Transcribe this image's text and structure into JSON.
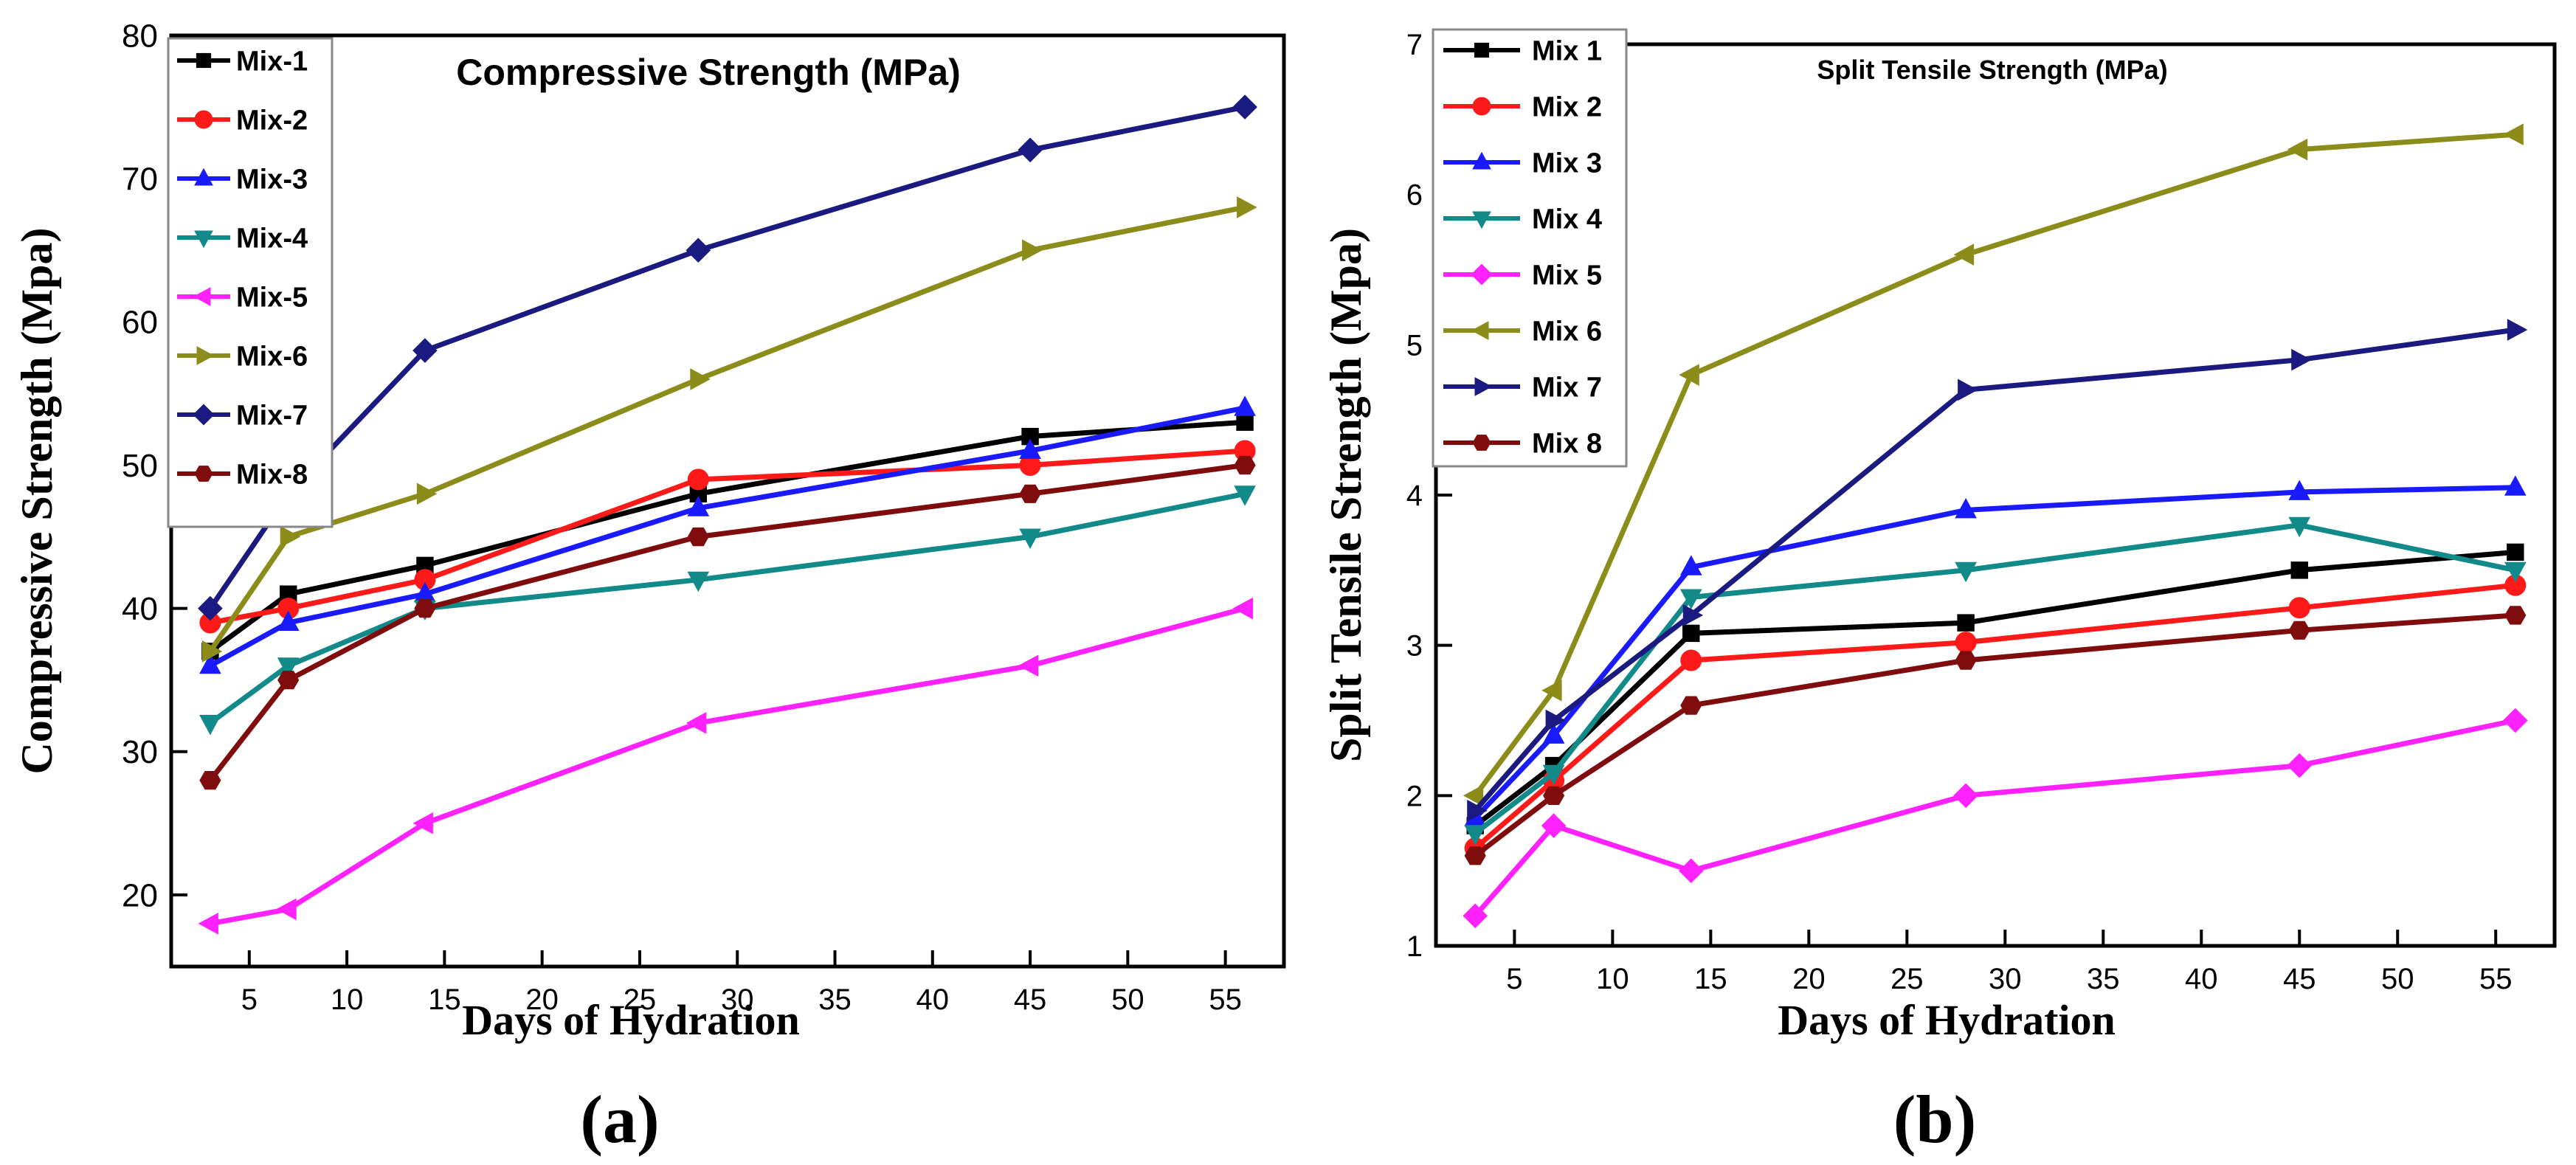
{
  "chart_data": [
    {
      "type": "line",
      "panel_label": "(a)",
      "title": "Compressive Strength (MPa)",
      "xlabel": "Days of Hydration",
      "ylabel": "Compressive Strength (Mpa)",
      "xlim": [
        1,
        58
      ],
      "ylim": [
        15,
        80
      ],
      "xticks": [
        5,
        10,
        15,
        20,
        25,
        30,
        35,
        40,
        45,
        50,
        55
      ],
      "yticks": [
        20,
        30,
        40,
        50,
        60,
        70,
        80
      ],
      "x": [
        3,
        7,
        14,
        28,
        45,
        56
      ],
      "legend_position": "top-left",
      "series": [
        {
          "name": "Mix-1",
          "color": "#000000",
          "marker": "square",
          "values": [
            37,
            41,
            43,
            48,
            52,
            53
          ]
        },
        {
          "name": "Mix-2",
          "color": "#ff1a1a",
          "marker": "circle",
          "values": [
            39,
            40,
            42,
            49,
            50,
            51
          ]
        },
        {
          "name": "Mix-3",
          "color": "#1a1aff",
          "marker": "triangle-up",
          "values": [
            36,
            39,
            41,
            47,
            51,
            54
          ]
        },
        {
          "name": "Mix-4",
          "color": "#128a8a",
          "marker": "triangle-down",
          "values": [
            32,
            36,
            40,
            42,
            45,
            48
          ]
        },
        {
          "name": "Mix-5",
          "color": "#ff22ff",
          "marker": "triangle-left",
          "values": [
            18,
            19,
            25,
            32,
            36,
            40
          ]
        },
        {
          "name": "Mix-6",
          "color": "#8c8c1a",
          "marker": "triangle-right",
          "values": [
            37,
            45,
            48,
            56,
            65,
            68
          ]
        },
        {
          "name": "Mix-7",
          "color": "#1a1a80",
          "marker": "diamond",
          "values": [
            40,
            48,
            58,
            65,
            72,
            75
          ]
        },
        {
          "name": "Mix-8",
          "color": "#800d0d",
          "marker": "hexagon",
          "values": [
            28,
            35,
            40,
            45,
            48,
            50
          ]
        }
      ]
    },
    {
      "type": "line",
      "panel_label": "(b)",
      "title": "Split Tensile Strength (MPa)",
      "xlabel": "Days of Hydration",
      "ylabel": "Split Tensile Strength (Mpa)",
      "xlim": [
        1,
        58
      ],
      "ylim": [
        1,
        7
      ],
      "xticks": [
        5,
        10,
        15,
        20,
        25,
        30,
        35,
        40,
        45,
        50,
        55
      ],
      "yticks": [
        1,
        2,
        3,
        4,
        5,
        6,
        7
      ],
      "x": [
        3,
        7,
        14,
        28,
        45,
        56
      ],
      "legend_position": "top-left",
      "series": [
        {
          "name": "Mix 1",
          "color": "#000000",
          "marker": "square",
          "values": [
            1.8,
            2.2,
            3.08,
            3.15,
            3.5,
            3.62
          ]
        },
        {
          "name": "Mix 2",
          "color": "#ff1a1a",
          "marker": "circle",
          "values": [
            1.65,
            2.1,
            2.9,
            3.02,
            3.25,
            3.4
          ]
        },
        {
          "name": "Mix 3",
          "color": "#1a1aff",
          "marker": "triangle-up",
          "values": [
            1.85,
            2.4,
            3.52,
            3.9,
            4.02,
            4.05
          ]
        },
        {
          "name": "Mix 4",
          "color": "#128a8a",
          "marker": "triangle-down",
          "values": [
            1.75,
            2.15,
            3.32,
            3.5,
            3.8,
            3.5
          ]
        },
        {
          "name": "Mix 5",
          "color": "#ff22ff",
          "marker": "diamond",
          "values": [
            1.2,
            1.8,
            1.5,
            2.0,
            2.2,
            2.5
          ]
        },
        {
          "name": "Mix 6",
          "color": "#8c8c1a",
          "marker": "triangle-left",
          "values": [
            2.0,
            2.7,
            4.8,
            5.6,
            6.3,
            6.4
          ]
        },
        {
          "name": "Mix 7",
          "color": "#1a1a80",
          "marker": "triangle-right",
          "values": [
            1.9,
            2.5,
            3.2,
            4.7,
            4.9,
            5.1
          ]
        },
        {
          "name": "Mix 8",
          "color": "#800d0d",
          "marker": "hexagon",
          "values": [
            1.6,
            2.0,
            2.6,
            2.9,
            3.1,
            3.2
          ]
        }
      ]
    }
  ]
}
